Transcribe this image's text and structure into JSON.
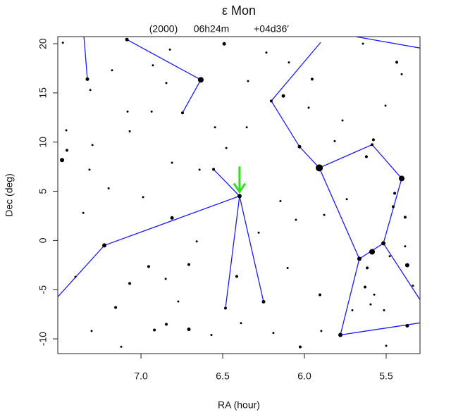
{
  "chart_data": {
    "type": "starmap",
    "title": "ε Mon",
    "epoch": "(2000)",
    "center_ra": "06h24m",
    "center_dec": "+04d36′",
    "xlabel": "RA (hour)",
    "ylabel": "Dec (deg)",
    "xlim": [
      7.509,
      5.293
    ],
    "ylim": [
      -11.5,
      20.72
    ],
    "xticks": [
      {
        "value": 7,
        "label": "7.0"
      },
      6.5,
      {
        "value": 6,
        "label": "6.0"
      },
      5.5
    ],
    "yticks": [
      -10,
      -5,
      0,
      5,
      10,
      15,
      20
    ],
    "star_color": "#000000",
    "x": [
      6.634,
      6.397,
      5.909,
      5.405,
      5.586,
      5.664,
      5.586,
      5.517,
      5.78,
      7.224,
      7.328,
      7.086,
      6.746,
      6.556,
      6.483,
      6.25,
      6.203,
      6.03,
      7.483,
      6.491,
      6.129,
      5.371,
      5.371,
      6.707,
      6.81,
      7.069,
      6.918,
      7.155,
      6.026,
      5.905,
      6.414,
      6.707,
      6.953,
      6.845,
      7.453,
      5.621,
      5.578,
      5.457,
      5.384,
      5.448,
      5.616,
      5.629,
      5.435,
      5.953,
      5.573,
      5.595,
      5.513,
      5.384,
      5.478,
      5.642,
      5.815,
      5.767,
      5.405,
      5.504,
      5.974,
      6.353,
      6.478,
      6.642,
      6.81,
      6.987,
      7.315,
      7.297,
      7.069,
      7.198,
      7.353,
      7.401,
      7.302,
      7.121,
      6.569,
      6.388,
      6.19,
      6.103,
      6.052,
      5.879,
      5.741,
      6.147,
      6.28,
      6.659,
      6.849,
      6.772,
      7.082,
      6.935,
      7.457,
      7.31,
      7.177,
      6.927,
      6.845,
      6.233,
      6.095,
      6.345,
      6.547,
      6.823,
      7.478,
      5.897,
      5.707,
      5.5,
      5.336
    ],
    "y": [
      16.33,
      4.51,
      7.38,
      6.3,
      9.74,
      -1.86,
      -1.15,
      -0.29,
      -9.6,
      -0.5,
      16.4,
      20.42,
      12.97,
      7.23,
      -6.88,
      -6.23,
      14.18,
      9.53,
      8.17,
      19.99,
      14.69,
      -2.51,
      -8.67,
      -9.03,
      2.29,
      -4.37,
      -9.1,
      -6.81,
      -10.82,
      -5.52,
      -3.65,
      -2.44,
      -2.65,
      -8.52,
      9.17,
      8.52,
      10.24,
      3.44,
      2.36,
      4.8,
      -2.79,
      -4.73,
      18.12,
      16.4,
      -5.5,
      -6.5,
      -7.1,
      -0.6,
      -1.6,
      20.0,
      10.1,
      12.2,
      16.9,
      13.7,
      13.5,
      11.5,
      9.4,
      7.2,
      7.9,
      4.4,
      7.2,
      9.7,
      11.1,
      5.3,
      2.8,
      -3.7,
      -9.2,
      -10.8,
      -9.6,
      -8.4,
      -9.4,
      -2.8,
      2.1,
      2.6,
      4.2,
      4.0,
      0.8,
      -0.1,
      -3.9,
      -6.2,
      13.1,
      13.1,
      11.2,
      15.3,
      17.3,
      17.8,
      16.0,
      19.1,
      18.1,
      16.2,
      11.5,
      19.4,
      20.1,
      -9.2,
      -7.1,
      -10.7,
      -4.6
    ],
    "magnitude": [
      3,
      4,
      2,
      3,
      5,
      4,
      3,
      4,
      4,
      4,
      4.5,
      4.5,
      5,
      5,
      5,
      4.5,
      5,
      4.5,
      4,
      4.5,
      4.5,
      4,
      4.5,
      4.5,
      4.5,
      5,
      5,
      5,
      5,
      5,
      5,
      5,
      5,
      5,
      5,
      5,
      5,
      5,
      5,
      5,
      5,
      5,
      5,
      5,
      5.5,
      5.5,
      5.5,
      5.5,
      5.5,
      5.5,
      5.5,
      5.5,
      5.5,
      5.5,
      5.5,
      5.5,
      5.5,
      5.5,
      5.5,
      5.5,
      5.5,
      5.5,
      5.5,
      5.5,
      5.5,
      5.5,
      5.5,
      5.5,
      5.5,
      5.5,
      5.5,
      5.5,
      5.5,
      5.5,
      5.5,
      5.5,
      5.5,
      5.5,
      5.5,
      5.5,
      5.5,
      5.5,
      5.5,
      5.5,
      5.5,
      5.5,
      5.5,
      5.5,
      5.5,
      5.5,
      5.5,
      5.5,
      5.5,
      5.5,
      5.5,
      5.5,
      5.5
    ],
    "line_color": "#1a1aff",
    "lines": [
      {
        "x": [
          7.349,
          7.328
        ],
        "y": [
          20.72,
          16.4
        ]
      },
      {
        "x": [
          7.086,
          6.634,
          6.746
        ],
        "y": [
          20.42,
          16.33,
          12.97
        ]
      },
      {
        "x": [
          7.509,
          7.224,
          6.397,
          6.556
        ],
        "y": [
          -5.73,
          -0.5,
          4.51,
          7.23
        ]
      },
      {
        "x": [
          6.397,
          6.483
        ],
        "y": [
          4.51,
          -6.88
        ]
      },
      {
        "x": [
          6.397,
          6.25
        ],
        "y": [
          4.51,
          -6.23
        ]
      },
      {
        "x": [
          5.901,
          6.203,
          6.03,
          5.909,
          5.586,
          5.405,
          5.517,
          5.664,
          5.909
        ],
        "y": [
          20.13,
          14.18,
          9.53,
          7.38,
          9.74,
          6.3,
          -0.29,
          -1.86,
          7.38
        ]
      },
      {
        "x": [
          5.664,
          5.78,
          5.293
        ],
        "y": [
          -1.86,
          -9.6,
          -8.38
        ]
      },
      {
        "x": [
          5.517,
          5.293
        ],
        "y": [
          -0.29,
          -6.02
        ]
      },
      {
        "x": [
          5.681,
          5.293
        ],
        "y": [
          20.7,
          19.56
        ]
      }
    ],
    "target": {
      "x": 6.397,
      "y": 4.51,
      "color": "#33dd22"
    }
  }
}
